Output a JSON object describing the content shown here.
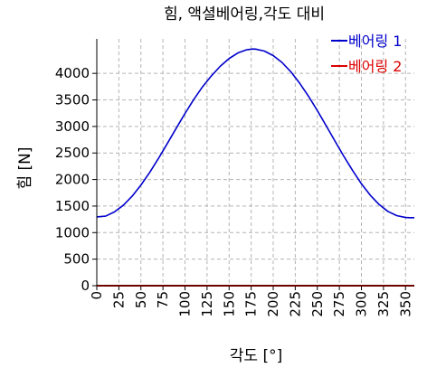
{
  "chart_data": {
    "type": "line",
    "title": "힘, 액셜베어링,각도 대비",
    "xlabel": "각도 [°]",
    "ylabel": "힘 [N]",
    "xlim": [
      0,
      360
    ],
    "ylim": [
      0,
      4650
    ],
    "xticks": [
      0,
      25,
      50,
      75,
      100,
      125,
      150,
      175,
      200,
      225,
      250,
      275,
      300,
      325,
      350
    ],
    "yticks": [
      0,
      500,
      1000,
      1500,
      2000,
      2500,
      3000,
      3500,
      4000
    ],
    "grid": true,
    "legend_position": "top-right",
    "x": [
      0,
      10,
      20,
      30,
      40,
      50,
      60,
      70,
      80,
      90,
      100,
      110,
      120,
      130,
      140,
      150,
      160,
      170,
      177,
      180,
      190,
      200,
      210,
      220,
      230,
      240,
      250,
      260,
      270,
      280,
      290,
      300,
      310,
      320,
      330,
      340,
      350,
      355,
      360
    ],
    "series": [
      {
        "name": "베어링 1",
        "color": "#0000cc",
        "values": [
          1295,
          1310,
          1390,
          1515,
          1685,
          1895,
          2135,
          2400,
          2680,
          2965,
          3245,
          3510,
          3750,
          3955,
          4135,
          4280,
          4385,
          4445,
          4460,
          4457,
          4420,
          4335,
          4205,
          4030,
          3815,
          3570,
          3300,
          3015,
          2725,
          2440,
          2170,
          1920,
          1705,
          1530,
          1400,
          1320,
          1285,
          1280,
          1280
        ]
      },
      {
        "name": "베어링 2",
        "color": "#dd0000",
        "values": [
          0,
          0,
          0,
          0,
          0,
          0,
          0,
          0,
          0,
          0,
          0,
          0,
          0,
          0,
          0,
          0,
          0,
          0,
          0,
          0,
          0,
          0,
          0,
          0,
          0,
          0,
          0,
          0,
          0,
          0,
          0,
          0,
          0,
          0,
          0,
          0,
          0,
          0,
          0
        ]
      }
    ]
  }
}
